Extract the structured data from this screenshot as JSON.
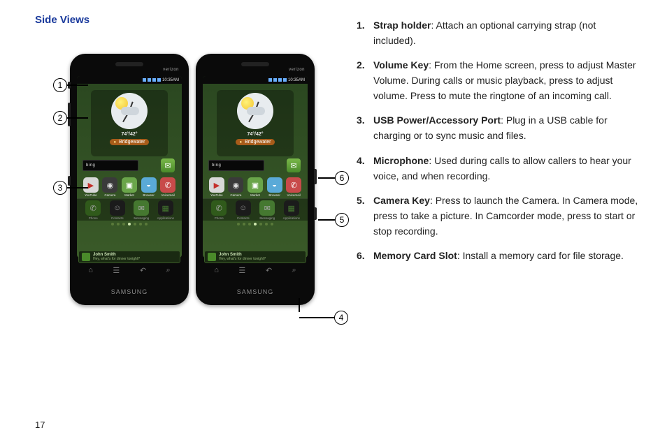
{
  "section_title": "Side Views",
  "page_number": "17",
  "phone": {
    "carrier": "verizon",
    "brand": "SAMSUNG",
    "time": "10:35AM",
    "temps": "74°/42°",
    "location": "Bridgewater",
    "search_engine": "bing",
    "notif_who": "John Smith",
    "notif_msg": "Hey, what's for dinner tonight?",
    "apps_row": [
      {
        "label": "YouTube",
        "glyph": "▶",
        "bg": "#d8d8d8",
        "fg": "#c4302b"
      },
      {
        "label": "Camera",
        "glyph": "◉",
        "bg": "#3a3a3a",
        "fg": "#ddd"
      },
      {
        "label": "Market",
        "glyph": "▣",
        "bg": "#6aa54a",
        "fg": "#fff"
      },
      {
        "label": "Browser",
        "glyph": "◒",
        "bg": "#5aaad8",
        "fg": "#fff"
      },
      {
        "label": "Voicemail",
        "glyph": "✆",
        "bg": "#c84a4a",
        "fg": "#fff"
      }
    ],
    "dock": [
      {
        "label": "Phone",
        "glyph": "✆",
        "bg": "#4a8a2a",
        "fg": "#fff"
      },
      {
        "label": "Contacts",
        "glyph": "☺",
        "bg": "#2a2a2a",
        "fg": "#ddd"
      },
      {
        "label": "Messaging",
        "glyph": "✉",
        "bg": "#6ab84a",
        "fg": "#fff"
      },
      {
        "label": "Applications",
        "glyph": "▦",
        "bg": "#2a2a2a",
        "fg": "#6ab84a"
      }
    ],
    "hwkeys": [
      "⌂",
      "☰",
      "↶",
      "⌕"
    ]
  },
  "callouts": {
    "c1": "1",
    "c2": "2",
    "c3": "3",
    "c4": "4",
    "c5": "5",
    "c6": "6"
  },
  "descriptions": [
    {
      "n": "1.",
      "term": "Strap holder",
      "text": ": Attach an optional carrying strap (not included)."
    },
    {
      "n": "2.",
      "term": "Volume Key",
      "text": ": From the Home screen, press to adjust Master Volume. During calls or music playback, press to adjust volume. Press to mute the ringtone of an incoming call."
    },
    {
      "n": "3.",
      "term": "USB Power/Accessory Port",
      "text": ": Plug in a USB cable for charging or to sync music and files."
    },
    {
      "n": "4.",
      "term": "Microphone",
      "text": ": Used during calls to allow callers to hear your voice, and when recording."
    },
    {
      "n": "5.",
      "term": "Camera Key",
      "text": ": Press to launch the Camera. In Camera mode, press to take a picture. In Camcorder mode, press to start or stop recording."
    },
    {
      "n": "6.",
      "term": "Memory Card Slot",
      "text": ": Install a memory card for file storage."
    }
  ]
}
